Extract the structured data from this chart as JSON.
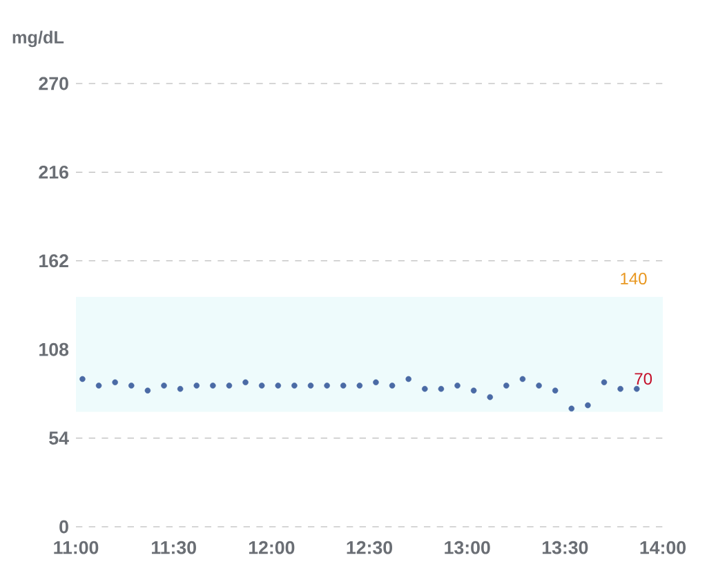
{
  "chart_data": {
    "type": "scatter",
    "ylabel": "mg/dL",
    "x": [
      11.0333,
      11.1167,
      11.2,
      11.2833,
      11.3667,
      11.45,
      11.5333,
      11.6167,
      11.7,
      11.7833,
      11.8667,
      11.95,
      12.0333,
      12.1167,
      12.2,
      12.2833,
      12.3667,
      12.45,
      12.5333,
      12.6167,
      12.7,
      12.7833,
      12.8667,
      12.95,
      13.0333,
      13.1167,
      13.2,
      13.2833,
      13.3667,
      13.45,
      13.5333,
      13.6167,
      13.7,
      13.7833,
      13.8667
    ],
    "series": [
      {
        "color": "#4a6aa5",
        "values": [
          90,
          86,
          88,
          86,
          83,
          86,
          84,
          86,
          86,
          86,
          88,
          86,
          86,
          86,
          86,
          86,
          86,
          86,
          88,
          86,
          90,
          84,
          84,
          86,
          83,
          79,
          86,
          90,
          86,
          83,
          72,
          74,
          88,
          84,
          84
        ]
      }
    ],
    "xlim": [
      11,
      14
    ],
    "xticks": [
      {
        "value": 11,
        "label": "11:00"
      },
      {
        "value": 11.5,
        "label": "11:30"
      },
      {
        "value": 12,
        "label": "12:00"
      },
      {
        "value": 12.5,
        "label": "12:30"
      },
      {
        "value": 13,
        "label": "13:00"
      },
      {
        "value": 13.5,
        "label": "13:30"
      },
      {
        "value": 14,
        "label": "14:00"
      }
    ],
    "ylim": [
      0,
      270
    ],
    "yticks": [
      0,
      54,
      108,
      162,
      216,
      270
    ],
    "grid": "y",
    "marker": "circle",
    "bands": [
      {
        "axis": "y",
        "from": 70,
        "to": 140,
        "color": "#eefbfc"
      }
    ],
    "annotations": [
      {
        "text": "140",
        "x": 13.85,
        "y": 140
      },
      {
        "text": "70",
        "x": 13.9,
        "y": 70
      }
    ]
  }
}
